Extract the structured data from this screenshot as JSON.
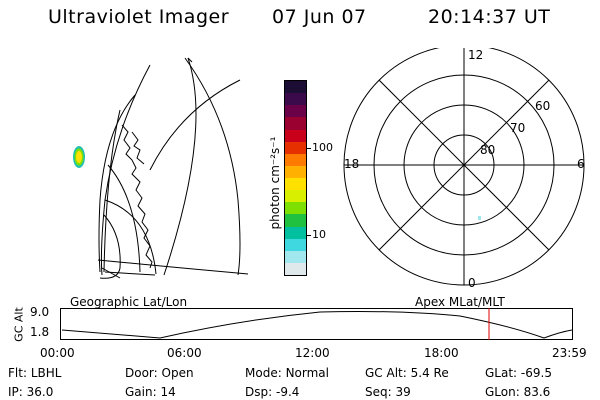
{
  "header": {
    "instrument": "Ultraviolet Imager",
    "date": "07 Jun 07",
    "time": "20:14:37 UT"
  },
  "geo_panel": {
    "label": "Geographic Lat/Lon"
  },
  "colorbar": {
    "unit_label": "photon cm⁻²s⁻¹",
    "ticks": [
      "100",
      "10"
    ],
    "colors": [
      "#1b0d33",
      "#3a0a4a",
      "#6a0048",
      "#9a0030",
      "#c8001a",
      "#e63000",
      "#ff7a00",
      "#ffb000",
      "#ffe000",
      "#d8f000",
      "#7ee000",
      "#20c040",
      "#00c0a0",
      "#40d8e0",
      "#a0e8ee",
      "#dfe8ea"
    ]
  },
  "polar_panel": {
    "label": "Apex MLat/MLT",
    "hour_labels": {
      "top": "12",
      "bottom": "0",
      "left": "18",
      "right": "6"
    },
    "lat_labels": [
      "80",
      "70",
      "60"
    ]
  },
  "gc_alt_plot": {
    "axis_label": "GC Alt",
    "y_ticks": [
      "9.0",
      "1.8"
    ],
    "x_ticks": [
      "00:00",
      "06:00",
      "12:00",
      "18:00",
      "23:59"
    ],
    "marker_color": "#e00000"
  },
  "info": {
    "flt": {
      "key": "Flt:",
      "value": "LBHL"
    },
    "ip": {
      "key": "IP:",
      "value": "36.0"
    },
    "door": {
      "key": "Door:",
      "value": "Open"
    },
    "gain": {
      "key": "Gain:",
      "value": "14"
    },
    "mode": {
      "key": "Mode:",
      "value": "Normal"
    },
    "dsp": {
      "key": "Dsp:",
      "value": "-9.4"
    },
    "gcalt": {
      "key": "GC Alt:",
      "value": "5.4 Re"
    },
    "seq": {
      "key": "Seq:",
      "value": "39"
    },
    "glat": {
      "key": "GLat:",
      "value": "-69.5"
    },
    "glon": {
      "key": "GLon:",
      "value": "83.6"
    }
  }
}
